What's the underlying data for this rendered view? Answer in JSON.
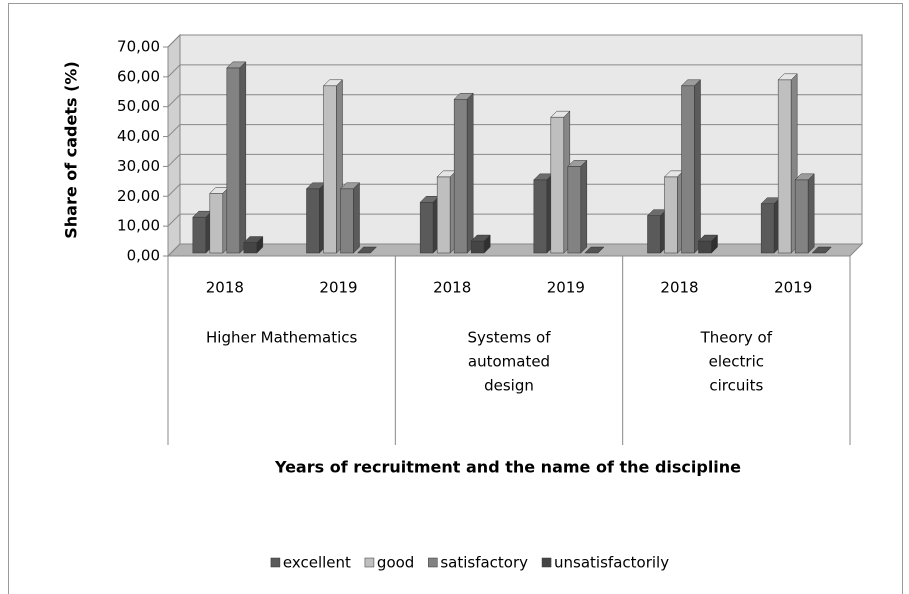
{
  "chart_data": {
    "type": "bar3d",
    "y_label": "Share of cadets  (%)",
    "x_label": "Years of recruitment and the name of the discipline",
    "categories": [
      "2018",
      "2019",
      "2018",
      "2019",
      "2018",
      "2019"
    ],
    "groups": [
      {
        "lines": [
          "Higher Mathematics"
        ],
        "span": 2
      },
      {
        "lines": [
          "Systems of",
          "automated",
          "design"
        ],
        "span": 2
      },
      {
        "lines": [
          "Theory of",
          "electric",
          "circuits"
        ],
        "span": 2
      }
    ],
    "series": [
      {
        "name": "excellent",
        "color": "#5a5a5a",
        "values": [
          12,
          21.5,
          17,
          24.5,
          12.5,
          16.5
        ]
      },
      {
        "name": "good",
        "color": "#bfbfbf",
        "values": [
          20,
          56,
          25.5,
          45.5,
          25.5,
          58
        ]
      },
      {
        "name": "satisfactory",
        "color": "#828282",
        "values": [
          62,
          21.5,
          51.5,
          29,
          56,
          24.5
        ]
      },
      {
        "name": "unsatisfactorily",
        "color": "#454545",
        "values": [
          3.5,
          0,
          4,
          0,
          4,
          0
        ]
      }
    ],
    "ylim": [
      0,
      70
    ],
    "yticks": [
      {
        "value": 0,
        "label": "0,00"
      },
      {
        "value": 10,
        "label": "10,00"
      },
      {
        "value": 20,
        "label": "20,00"
      },
      {
        "value": 30,
        "label": "30,00"
      },
      {
        "value": 40,
        "label": "40,00"
      },
      {
        "value": 50,
        "label": "50,00"
      },
      {
        "value": 60,
        "label": "60,00"
      },
      {
        "value": 70,
        "label": "70,00"
      }
    ],
    "grid": true,
    "legend": "bottom"
  }
}
